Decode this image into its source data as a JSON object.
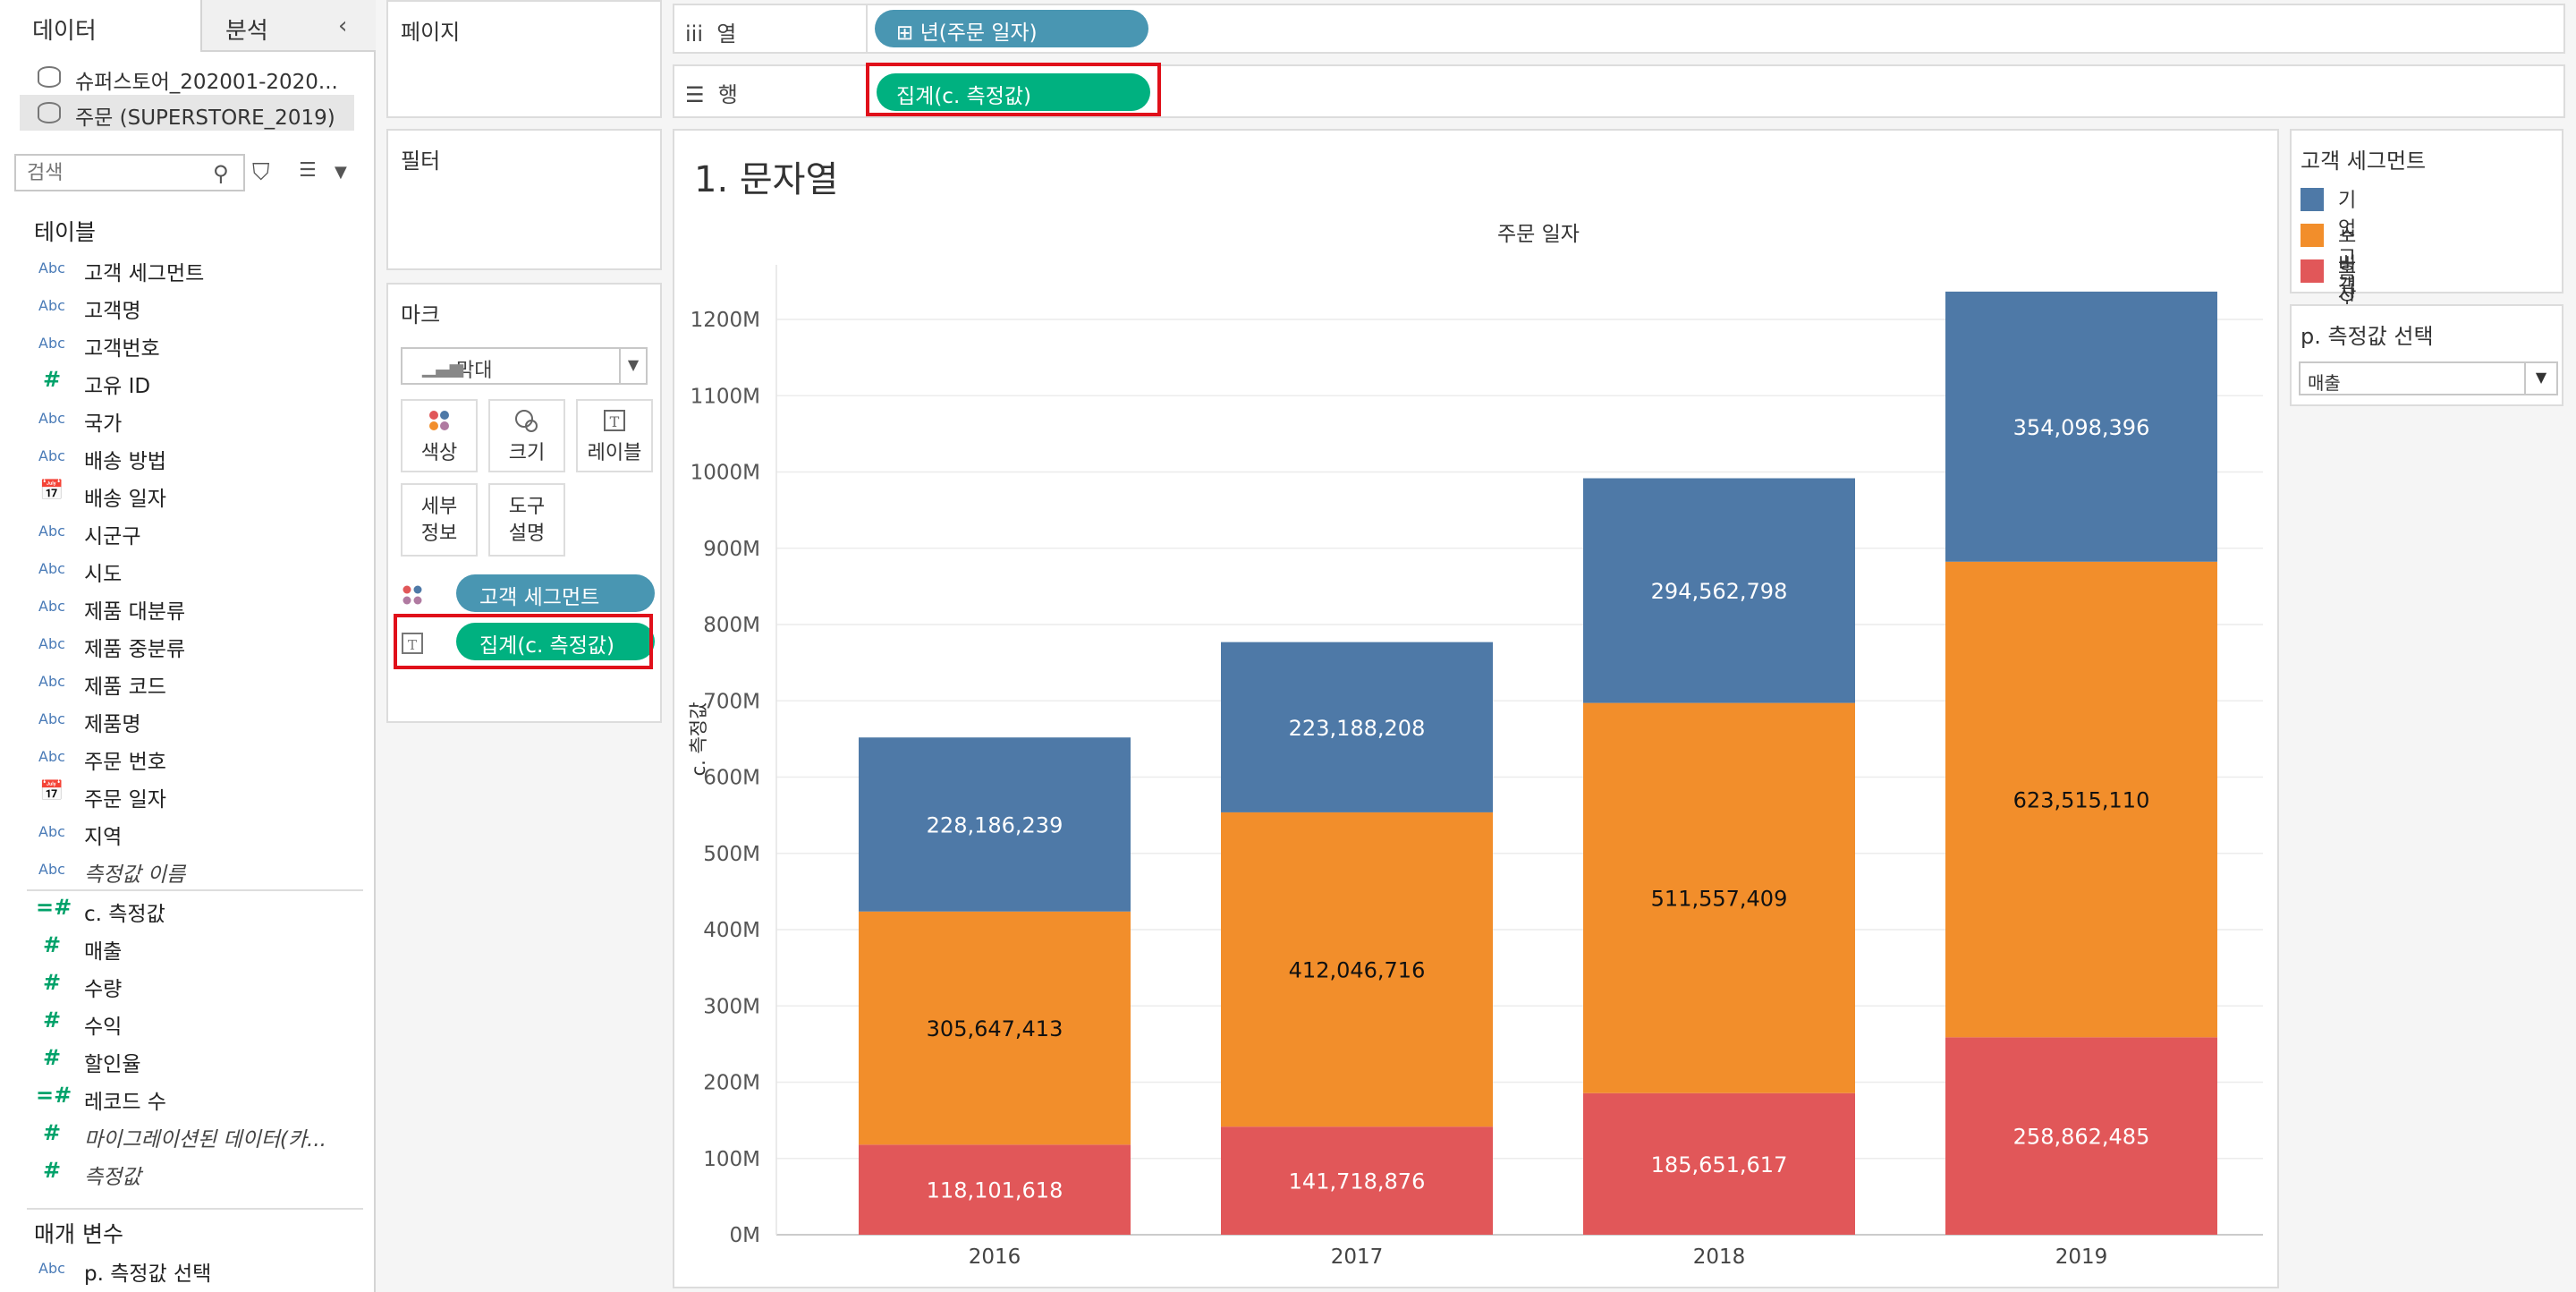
{
  "left_pane": {
    "tab_data": "데이터",
    "tab_analysis": "분석",
    "data_sources": [
      "슈퍼스토어_202001-2020...",
      "주문 (SUPERSTORE_2019)"
    ],
    "search_placeholder": "검색",
    "tables_header": "테이블",
    "fields": [
      {
        "type": "Abc",
        "name": "고객 세그먼트"
      },
      {
        "type": "Abc",
        "name": "고객명"
      },
      {
        "type": "Abc",
        "name": "고객번호"
      },
      {
        "type": "#",
        "name": "고유 ID"
      },
      {
        "type": "Abc",
        "name": "국가"
      },
      {
        "type": "Abc",
        "name": "배송 방법"
      },
      {
        "type": "date",
        "name": "배송 일자"
      },
      {
        "type": "Abc",
        "name": "시군구"
      },
      {
        "type": "Abc",
        "name": "시도"
      },
      {
        "type": "Abc",
        "name": "제품 대분류"
      },
      {
        "type": "Abc",
        "name": "제품 중분류"
      },
      {
        "type": "Abc",
        "name": "제품 코드"
      },
      {
        "type": "Abc",
        "name": "제품명"
      },
      {
        "type": "Abc",
        "name": "주문 번호"
      },
      {
        "type": "date",
        "name": "주문 일자"
      },
      {
        "type": "Abc",
        "name": "지역"
      },
      {
        "type": "Abc",
        "name": "측정값 이름",
        "italic": true
      }
    ],
    "measures": [
      {
        "type": "=#",
        "name": "c. 측정값"
      },
      {
        "type": "#",
        "name": "매출"
      },
      {
        "type": "#",
        "name": "수량"
      },
      {
        "type": "#",
        "name": "수익"
      },
      {
        "type": "#",
        "name": "할인율"
      },
      {
        "type": "=#",
        "name": "레코드 수"
      },
      {
        "type": "#",
        "name": "마이그레이션된 데이터(카...",
        "italic": true
      },
      {
        "type": "#",
        "name": "측정값",
        "italic": true
      }
    ],
    "params_header": "매개 변수",
    "params": [
      {
        "type": "Abc",
        "name": "p. 측정값 선택"
      }
    ]
  },
  "shelves": {
    "pages": "페이지",
    "filters": "필터",
    "marks": "마크",
    "columns_label": "열",
    "rows_label": "행",
    "columns_pill": "년(주문 일자)",
    "rows_pill": "집계(c. 측정값)"
  },
  "marks": {
    "type": "막대",
    "color_btn": "색상",
    "size_btn": "크기",
    "label_btn": "레이블",
    "detail_btn_1": "세부",
    "detail_btn_2": "정보",
    "tooltip_btn_1": "도구",
    "tooltip_btn_2": "설명",
    "color_pill": "고객 세그먼트",
    "label_pill": "집계(c. 측정값)"
  },
  "view": {
    "sheet_title": "1. 문자열",
    "column_header": "주문 일자"
  },
  "legend": {
    "title": "고객 세그먼트",
    "items": [
      {
        "label": "기업 고객",
        "color": "#4e79a7"
      },
      {
        "label": "소비자",
        "color": "#f28e2b"
      },
      {
        "label": "홈 오피스",
        "color": "#e15759"
      }
    ]
  },
  "parameter": {
    "title": "p. 측정값 선택",
    "value": "매출"
  },
  "chart_data": {
    "type": "bar",
    "stacked": true,
    "title": "",
    "xlabel": "",
    "ylabel": "c. 측정값",
    "categories": [
      "2016",
      "2017",
      "2018",
      "2019"
    ],
    "series": [
      {
        "name": "홈 오피스",
        "color": "#e15759",
        "values": [
          118101618,
          141718876,
          185651617,
          258862485
        ]
      },
      {
        "name": "소비자",
        "color": "#f28e2b",
        "values": [
          305647413,
          412046716,
          511557409,
          623515110
        ]
      },
      {
        "name": "기업 고객",
        "color": "#4e79a7",
        "values": [
          228186239,
          223188208,
          294562798,
          354098396
        ]
      }
    ],
    "value_labels": [
      [
        "118,101,618",
        "141,718,876",
        "185,651,617",
        "258,862,485"
      ],
      [
        "305,647,413",
        "412,046,716",
        "511,557,409",
        "623,515,110"
      ],
      [
        "228,186,239",
        "223,188,208",
        "294,562,798",
        "354,098,396"
      ]
    ],
    "y_ticks": [
      "0M",
      "100M",
      "200M",
      "300M",
      "400M",
      "500M",
      "600M",
      "700M",
      "800M",
      "900M",
      "1000M",
      "1100M",
      "1200M"
    ],
    "ylim": [
      0,
      1260000000
    ],
    "grid": true
  }
}
